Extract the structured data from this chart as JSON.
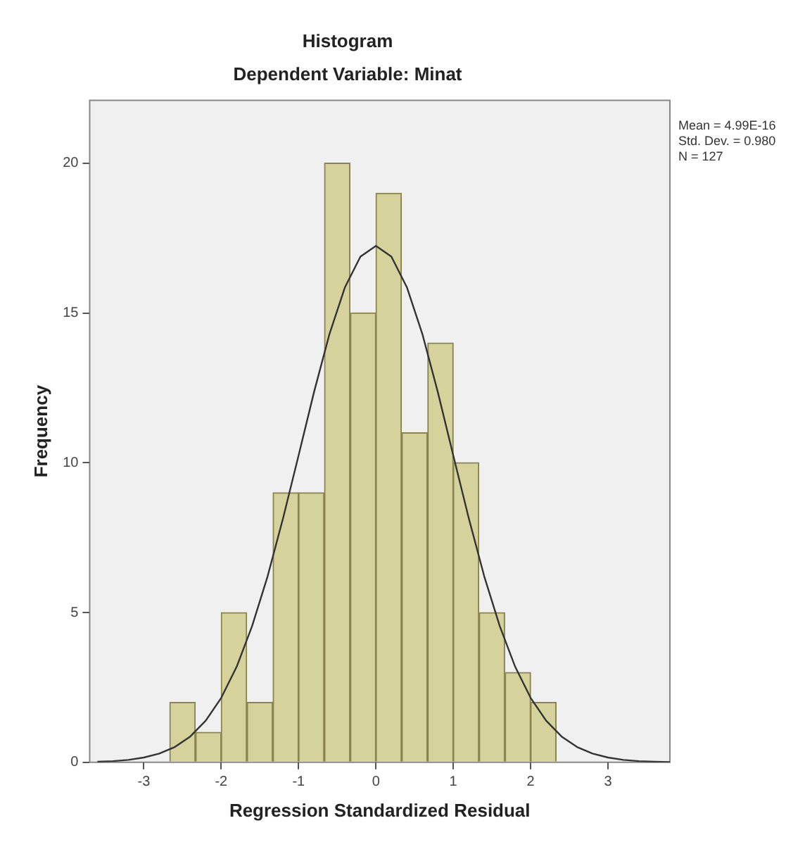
{
  "chart_data": {
    "type": "histogram",
    "title": "Histogram",
    "subtitle": "Dependent Variable: Minat",
    "xlabel": "Regression Standardized Residual",
    "ylabel": "Frequency",
    "bins": [
      -2.67,
      -2.33,
      -2,
      -1.67,
      -1.33,
      -1,
      -0.67,
      -0.33,
      0,
      0.33,
      0.67,
      1,
      1.33,
      1.67,
      2,
      2.33
    ],
    "values": [
      2,
      1,
      5,
      2,
      9,
      9,
      20,
      15,
      19,
      11,
      14,
      10,
      5,
      3,
      2
    ],
    "color": "#d6d29c",
    "series": [
      {
        "type": "line",
        "color": "#333333",
        "x": [
          -3.6,
          -3.4,
          -3.2,
          -3,
          -2.8,
          -2.6,
          -2.4,
          -2.2,
          -2,
          -1.8,
          -1.6,
          -1.4,
          -1.2,
          -1,
          -0.8,
          -0.6,
          -0.4,
          -0.2,
          0,
          0.2,
          0.4,
          0.6,
          0.8,
          1,
          1.2,
          1.4,
          1.6,
          1.8,
          2,
          2.2,
          2.4,
          2.6,
          2.8,
          3,
          3.2,
          3.4,
          3.6,
          3.8
        ],
        "values": [
          0.02,
          0.04,
          0.08,
          0.16,
          0.29,
          0.51,
          0.86,
          1.39,
          2.15,
          3.19,
          4.55,
          6.21,
          8.15,
          10.24,
          12.36,
          14.3,
          15.86,
          16.88,
          17.24,
          16.88,
          15.86,
          14.3,
          12.36,
          10.24,
          8.15,
          6.21,
          4.55,
          3.19,
          2.15,
          1.39,
          0.86,
          0.51,
          0.29,
          0.16,
          0.08,
          0.04,
          0.02,
          0.01
        ]
      }
    ],
    "xlim": [
      -3.7,
      3.8
    ],
    "xticks": [
      -3,
      -2,
      -1,
      0,
      1,
      2,
      3
    ],
    "ylim": [
      0,
      22.1
    ],
    "yticks": [
      0,
      5,
      10,
      15,
      20
    ],
    "grid": false,
    "marker": "none",
    "annotations": [
      "Mean = 4.99E-16",
      "Std. Dev. = 0.980",
      "N = 127"
    ]
  }
}
